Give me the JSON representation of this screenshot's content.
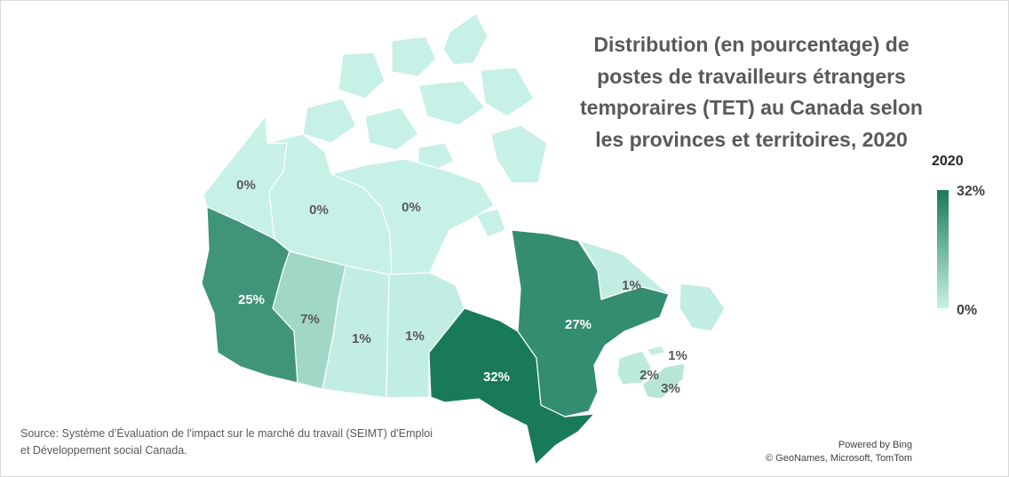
{
  "title": "Distribution (en pourcentage) de postes de travailleurs étrangers temporaires (TET) au Canada selon les provinces et territoires, 2020",
  "legend": {
    "title": "2020",
    "max_label": "32%",
    "min_label": "0%",
    "color_low": "#c7f1e6",
    "color_high": "#197a5a"
  },
  "regions": [
    {
      "name": "Yukon",
      "label": "0%",
      "value": 0
    },
    {
      "name": "Territoires du Nord-Ouest",
      "label": "0%",
      "value": 0
    },
    {
      "name": "Nunavut",
      "label": "0%",
      "value": 0
    },
    {
      "name": "Colombie-Britannique",
      "label": "25%",
      "value": 25
    },
    {
      "name": "Alberta",
      "label": "7%",
      "value": 7
    },
    {
      "name": "Saskatchewan",
      "label": "1%",
      "value": 1
    },
    {
      "name": "Manitoba",
      "label": "1%",
      "value": 1
    },
    {
      "name": "Ontario",
      "label": "32%",
      "value": 32
    },
    {
      "name": "Québec",
      "label": "27%",
      "value": 27
    },
    {
      "name": "Terre-Neuve-et-Labrador",
      "label": "1%",
      "value": 1
    },
    {
      "name": "Île-du-Prince-Édouard",
      "label": "1%",
      "value": 1
    },
    {
      "name": "Nouveau-Brunswick",
      "label": "2%",
      "value": 2
    },
    {
      "name": "Nouvelle-Écosse",
      "label": "3%",
      "value": 3
    }
  ],
  "source": "Source: Système d’Évaluation de l'impact sur le marché du travail (SEIMT) d'Emploi et Développement social Canada.",
  "credits": {
    "line1": "Powered by Bing",
    "line2": "© GeoNames, Microsoft, TomTom"
  }
}
